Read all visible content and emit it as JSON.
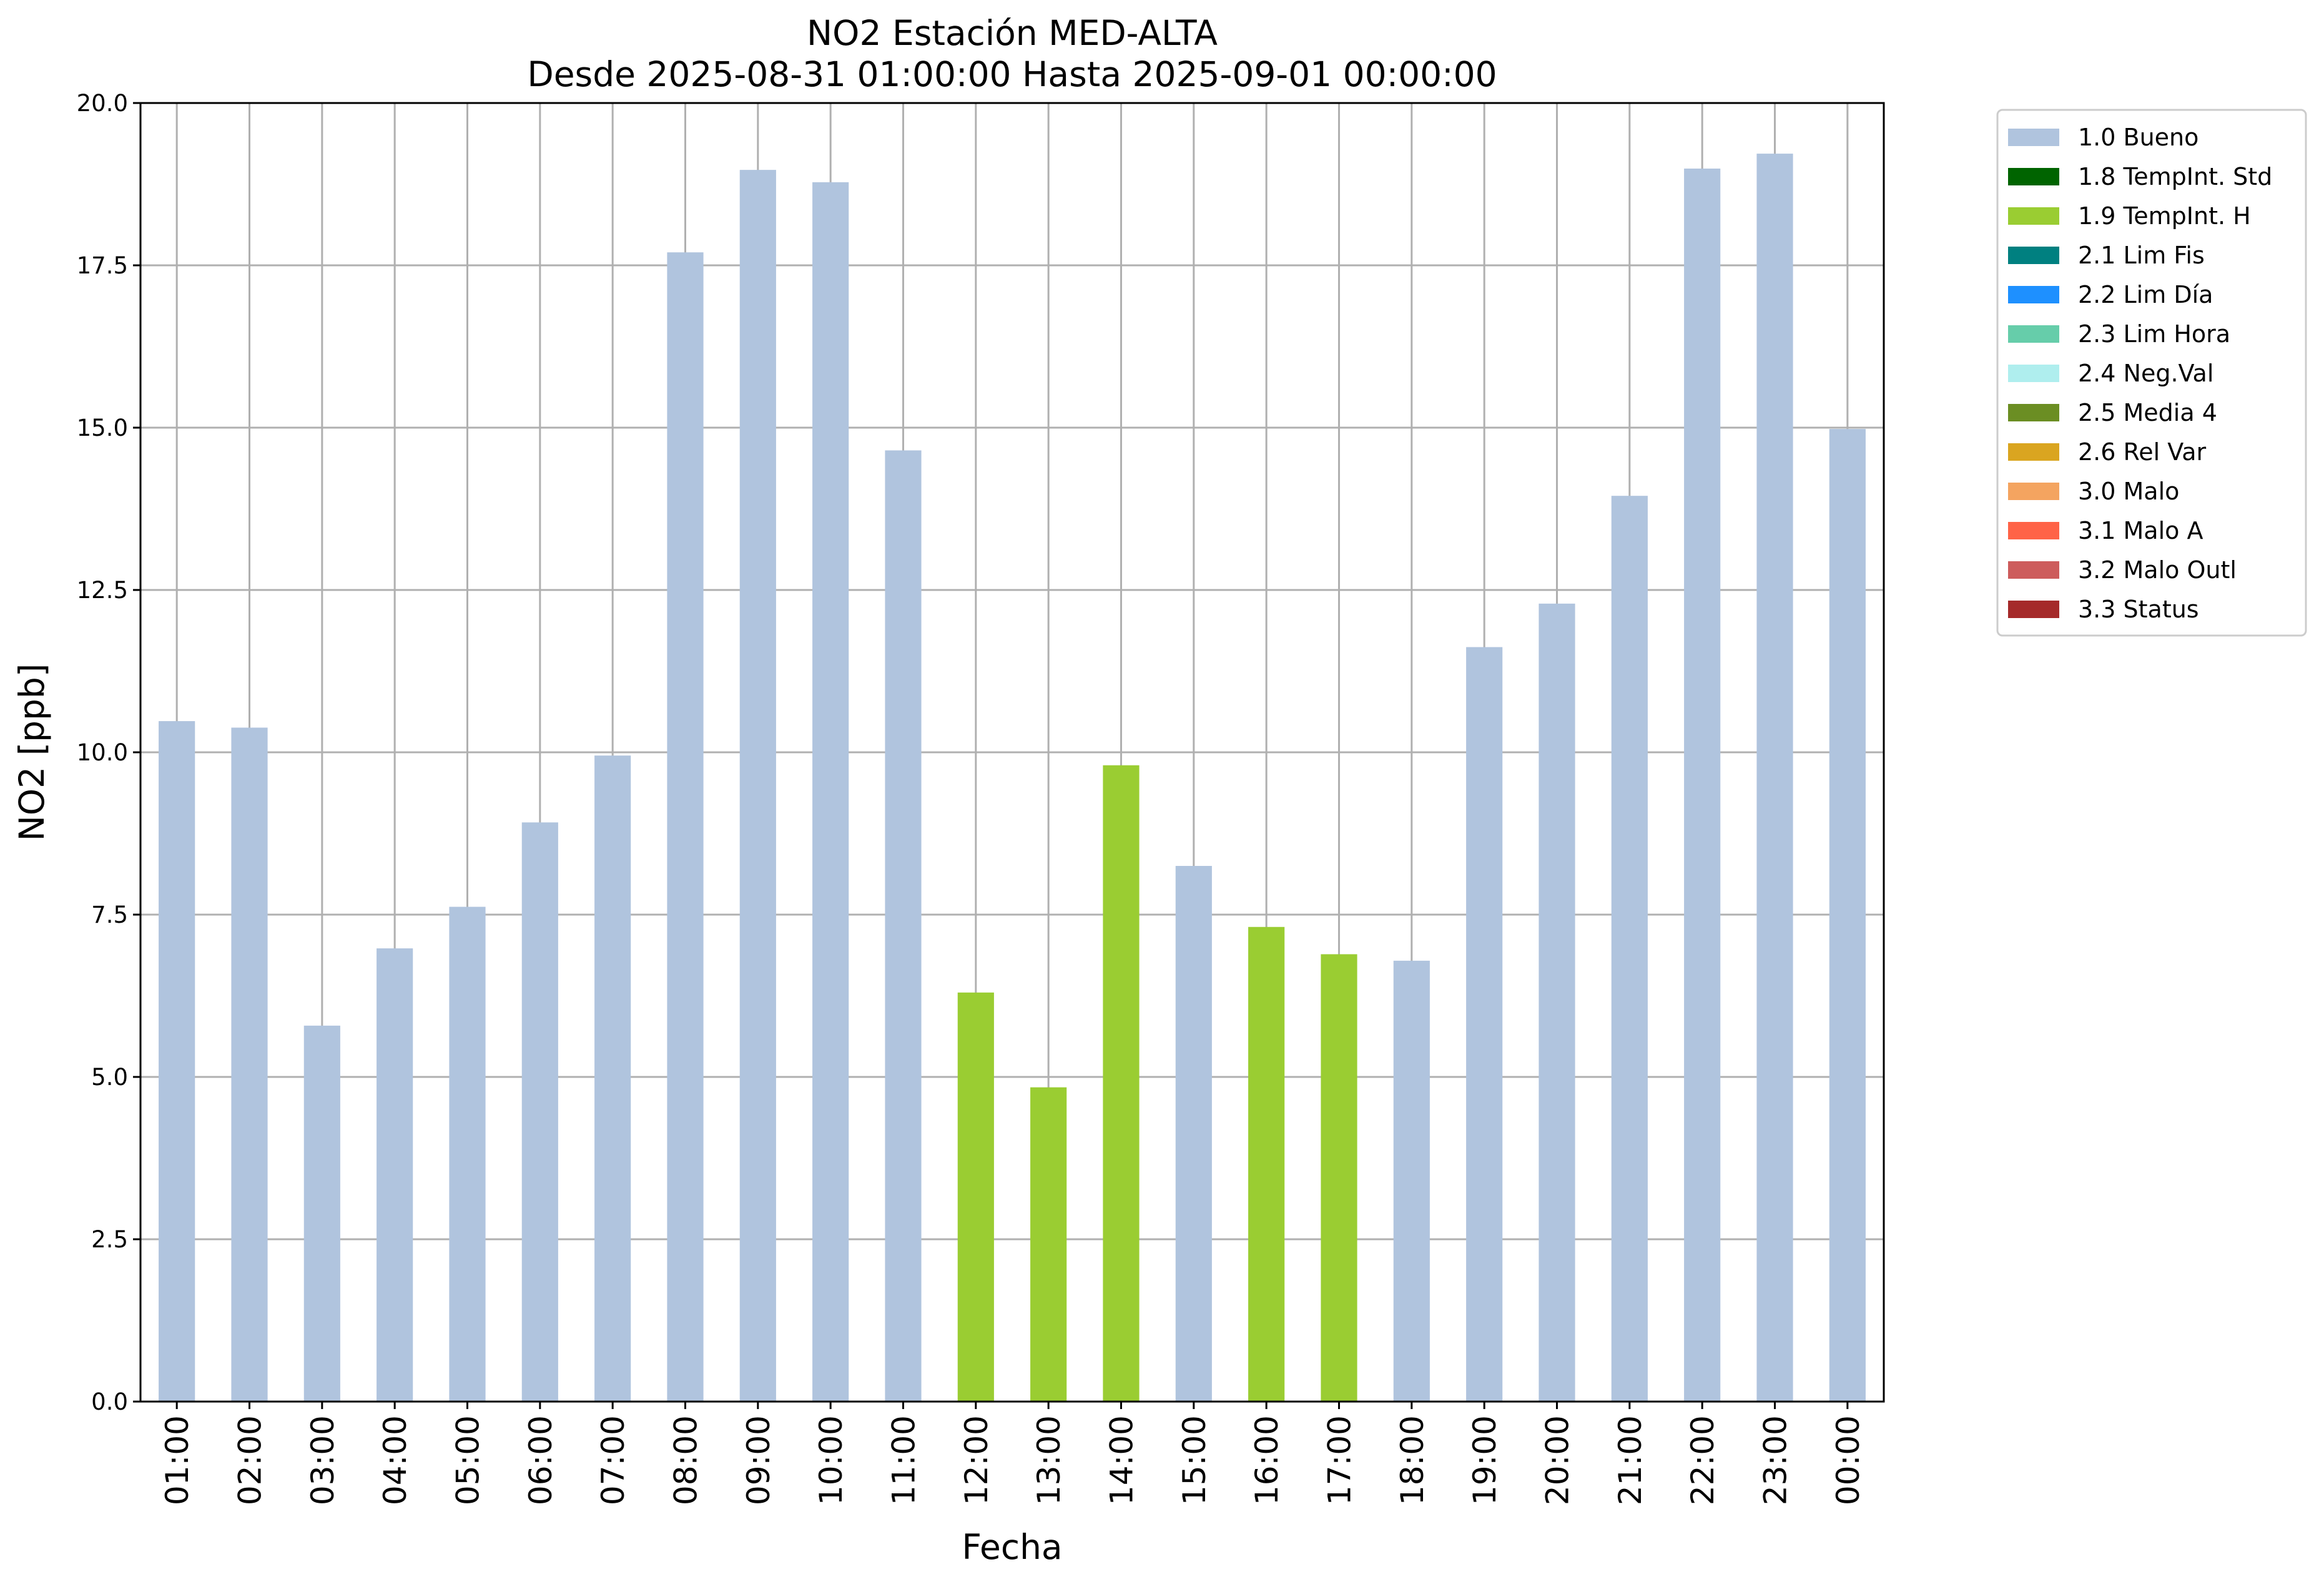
{
  "chart_data": {
    "type": "bar",
    "title": "NO2 Estación MED-ALTA",
    "subtitle": "Desde 2025-08-31 01:00:00 Hasta 2025-09-01 00:00:00",
    "xlabel": "Fecha",
    "ylabel": "NO2 [ppb]",
    "ylim": [
      0,
      20
    ],
    "yticks": [
      "0.0",
      "2.5",
      "5.0",
      "7.5",
      "10.0",
      "12.5",
      "15.0",
      "17.5",
      "20.0"
    ],
    "grid": true,
    "legend_position": "outside-top-right",
    "categories": [
      "01:00",
      "02:00",
      "03:00",
      "04:00",
      "05:00",
      "06:00",
      "07:00",
      "08:00",
      "09:00",
      "10:00",
      "11:00",
      "12:00",
      "13:00",
      "14:00",
      "15:00",
      "16:00",
      "17:00",
      "18:00",
      "19:00",
      "20:00",
      "21:00",
      "22:00",
      "23:00",
      "00:00"
    ],
    "values": [
      10.48,
      10.38,
      5.79,
      6.98,
      7.62,
      8.92,
      9.95,
      17.7,
      18.97,
      18.78,
      14.65,
      6.3,
      4.84,
      9.8,
      8.25,
      7.31,
      6.89,
      6.79,
      11.62,
      12.29,
      13.95,
      18.99,
      19.22,
      14.98
    ],
    "flags": [
      "1.0 Bueno",
      "1.0 Bueno",
      "1.0 Bueno",
      "1.0 Bueno",
      "1.0 Bueno",
      "1.0 Bueno",
      "1.0 Bueno",
      "1.0 Bueno",
      "1.0 Bueno",
      "1.0 Bueno",
      "1.0 Bueno",
      "1.9 TempInt. H",
      "1.9 TempInt. H",
      "1.9 TempInt. H",
      "1.0 Bueno",
      "1.9 TempInt. H",
      "1.9 TempInt. H",
      "1.0 Bueno",
      "1.0 Bueno",
      "1.0 Bueno",
      "1.0 Bueno",
      "1.0 Bueno",
      "1.0 Bueno",
      "1.0 Bueno"
    ],
    "legend": [
      {
        "name": "1.0 Bueno",
        "color": "#b0c4de"
      },
      {
        "name": "1.8 TempInt. Std",
        "color": "#006400"
      },
      {
        "name": "1.9 TempInt. H",
        "color": "#9acd32"
      },
      {
        "name": "2.1 Lim Fis",
        "color": "#008080"
      },
      {
        "name": "2.2 Lim Día",
        "color": "#1e90ff"
      },
      {
        "name": "2.3 Lim Hora",
        "color": "#66cdaa"
      },
      {
        "name": "2.4 Neg.Val",
        "color": "#afeeee"
      },
      {
        "name": "2.5 Media 4",
        "color": "#6b8e23"
      },
      {
        "name": "2.6 Rel Var",
        "color": "#daa520"
      },
      {
        "name": "3.0 Malo",
        "color": "#f4a460"
      },
      {
        "name": "3.1 Malo A",
        "color": "#ff6347"
      },
      {
        "name": "3.2 Malo Outl",
        "color": "#cd5c5c"
      },
      {
        "name": "3.3 Status",
        "color": "#a52a2a"
      }
    ]
  }
}
